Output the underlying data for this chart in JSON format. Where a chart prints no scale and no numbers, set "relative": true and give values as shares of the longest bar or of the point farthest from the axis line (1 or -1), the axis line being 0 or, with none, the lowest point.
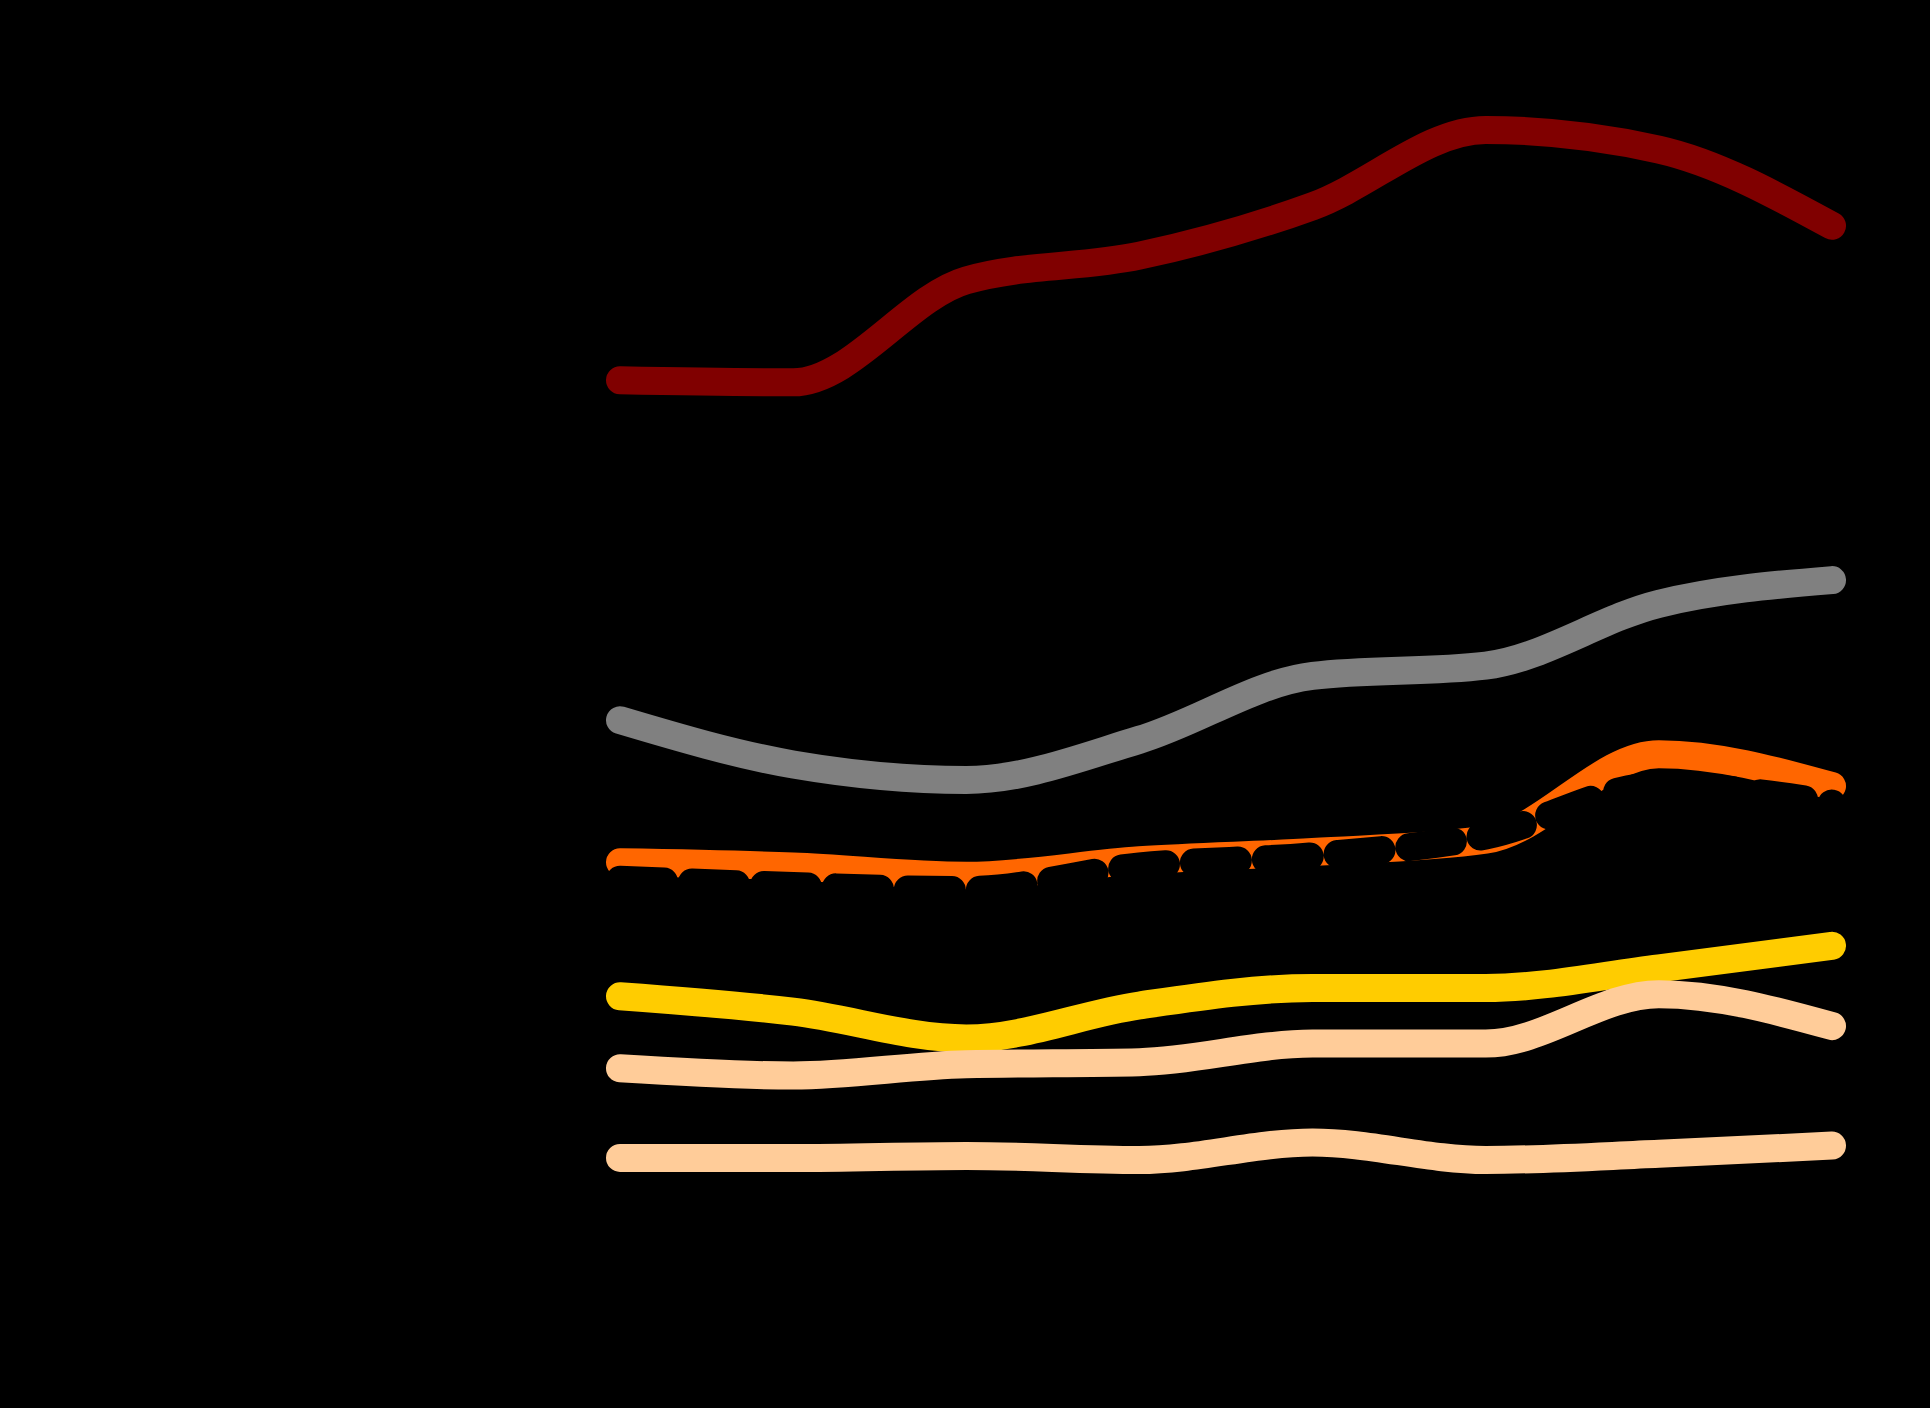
{
  "chart_data": {
    "type": "line",
    "relative": true,
    "categories": [
      null,
      null,
      null,
      null,
      null,
      null,
      null,
      null
    ],
    "series": [
      {
        "color": "#800000",
        "values": [
          0.757,
          0.755,
          0.854,
          0.878,
          0.926,
          1.0,
          0.981,
          0.907
        ]
      },
      {
        "color": "#808080",
        "values": [
          0.427,
          0.384,
          0.369,
          0.408,
          0.47,
          0.48,
          0.54,
          0.563
        ]
      },
      {
        "color": "#ff6600",
        "values": [
          0.289,
          0.285,
          0.276,
          0.291,
          0.299,
          0.311,
          0.394,
          0.363
        ]
      },
      {
        "color": "#000000",
        "line_style": "dashed",
        "values": [
          0.272,
          0.266,
          0.262,
          0.285,
          0.295,
          0.315,
          0.363,
          0.346
        ]
      },
      {
        "color": "#ffcc00",
        "values": [
          0.159,
          0.144,
          0.118,
          0.15,
          0.167,
          0.167,
          0.186,
          0.208
        ]
      },
      {
        "color": "#ffcc99",
        "values": [
          0.089,
          0.082,
          0.093,
          0.095,
          0.113,
          0.113,
          0.161,
          0.13
        ]
      },
      {
        "color": "#ffcc99",
        "values": [
          0.002,
          0.002,
          0.004,
          0,
          0.017,
          0,
          0.006,
          0.014
        ]
      }
    ]
  }
}
